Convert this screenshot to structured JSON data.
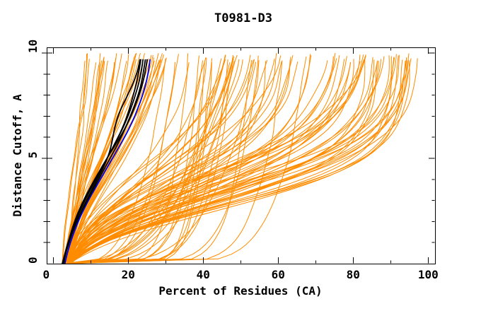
{
  "chart_data": {
    "type": "line",
    "title": "T0981-D3",
    "xlabel": "Percent of Residues (CA)",
    "ylabel": "Distance Cutoff, A",
    "xlim": [
      -1.75,
      101.85
    ],
    "ylim": [
      0,
      10.27
    ],
    "x_major_ticks": [
      0,
      20,
      40,
      60,
      80,
      100
    ],
    "x_tick_labels": [
      "0",
      "20",
      "40",
      "60",
      "80",
      "100"
    ],
    "x_minor_step": 10,
    "y_major_ticks": [
      0,
      5,
      10
    ],
    "y_tick_labels": [
      "0",
      "5",
      "10"
    ],
    "y_minor_step": 1,
    "grid": false,
    "legend": false,
    "seed": 7,
    "colors": {
      "predictions": "#ff8c00",
      "highlight_black": "#000000",
      "highlight_blue": "#0000e6"
    },
    "series": [
      {
        "name": "prediction-models-orange",
        "color": "#ff8c00",
        "stroke_width": 1,
        "count": 128,
        "start_range": [
          2.3,
          4.6
        ],
        "y_top_range": [
          9.55,
          10.0
        ],
        "bands": [
          {
            "count": 38,
            "shape": "logistic",
            "end_range": [
              7.5,
              30
            ],
            "k_range": [
              2.0,
              4.5
            ],
            "m_range": [
              0.4,
              0.58
            ]
          },
          {
            "count": 24,
            "shape": "mixed",
            "end_range": [
              28,
              55
            ],
            "k_range": [
              4.0,
              7.0
            ],
            "m_range": [
              0.32,
              0.5
            ],
            "p_range": [
              0.2,
              0.4
            ]
          },
          {
            "count": 30,
            "shape": "logistic",
            "end_range": [
              55,
              85
            ],
            "k_range": [
              5.0,
              8.0
            ],
            "m_range": [
              0.3,
              0.45
            ]
          },
          {
            "count": 24,
            "shape": "logistic",
            "end_range": [
              83,
              98.5
            ],
            "k_range": [
              6.0,
              9.0
            ],
            "m_range": [
              0.26,
              0.4
            ]
          },
          {
            "count": 12,
            "shape": "power",
            "end_range": [
              35,
              68
            ],
            "p_range": [
              0.08,
              0.16
            ]
          }
        ]
      },
      {
        "name": "highlight-model-blue",
        "color": "#0000e6",
        "stroke_width": 1.8,
        "y_top": 9.7,
        "curves": [
          {
            "start": 3.1,
            "end": 25.9,
            "k": 4.6,
            "m": 0.46
          }
        ]
      },
      {
        "name": "highlight-models-black",
        "color": "#000000",
        "stroke_width": 1.8,
        "y_top": 9.7,
        "curves": [
          {
            "start": 2.5,
            "end": 23.4,
            "k": 4.5,
            "m": 0.45
          },
          {
            "start": 2.7,
            "end": 24.0,
            "k": 4.8,
            "m": 0.47
          },
          {
            "start": 2.4,
            "end": 24.6,
            "k": 4.2,
            "m": 0.43
          },
          {
            "start": 2.8,
            "end": 25.1,
            "k": 5.0,
            "m": 0.5
          },
          {
            "start": 2.6,
            "end": 23.0,
            "k": 4.6,
            "m": 0.42,
            "bump": [
              0.72,
              0.15,
              -2.2
            ]
          }
        ]
      }
    ],
    "approx_readings": {
      "note": "approximate values read from the plot",
      "black_cluster_points": [
        [
          2.5,
          0
        ],
        [
          5,
          2
        ],
        [
          9,
          4
        ],
        [
          14.5,
          5
        ],
        [
          18,
          6.5
        ],
        [
          21,
          8
        ],
        [
          24,
          9.7
        ]
      ],
      "blue_curve_points": [
        [
          3,
          0
        ],
        [
          5.5,
          2
        ],
        [
          15,
          5
        ],
        [
          22,
          8
        ],
        [
          25.9,
          9.7
        ]
      ],
      "orange_top_x_range": [
        7.5,
        98.5
      ],
      "orange_bottom_start_x_range": [
        2.3,
        4.6
      ]
    }
  }
}
